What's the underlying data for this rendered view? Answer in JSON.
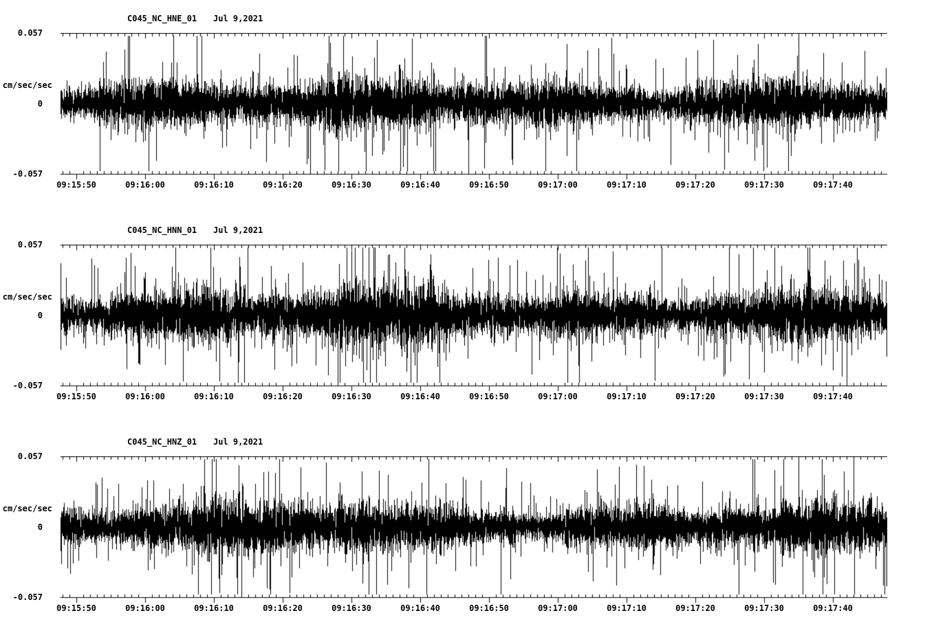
{
  "page": {
    "background": "#ffffff",
    "trace_color": "#000000"
  },
  "chart_data": [
    {
      "type": "line",
      "title": "C045_NC_HNE_01",
      "date_label": "Jul 9,2021",
      "ylabel": "cm/sec/sec",
      "ylim": [
        -0.057,
        0.057
      ],
      "ytick_labels": [
        "0.057",
        "0",
        "-0.057"
      ],
      "xtick_labels": [
        "09:15:50",
        "09:16:00",
        "09:16:10",
        "09:16:20",
        "09:16:30",
        "09:16:40",
        "09:16:50",
        "09:17:00",
        "09:17:10",
        "09:17:20",
        "09:17:30",
        "09:17:40"
      ],
      "xtick_interval_seconds": 10,
      "duration_seconds_approx": 120,
      "series_description": "dense broadband accelerometer noise trace, zero-mean, occasional spikes toward full scale, slightly elevated amplitude near 09:16:40-09:16:50",
      "noise_params": {
        "seed": 1013,
        "base_amp": 0.016,
        "spike_prob": 0.05,
        "bump_amp": 0.35,
        "bump_center": 0.47,
        "bump_width": 0.12
      }
    },
    {
      "type": "line",
      "title": "C045_NC_HNN_01",
      "date_label": "Jul 9,2021",
      "ylabel": "cm/sec/sec",
      "ylim": [
        -0.057,
        0.057
      ],
      "ytick_labels": [
        "0.057",
        "0",
        "-0.057"
      ],
      "xtick_labels": [
        "09:15:50",
        "09:16:00",
        "09:16:10",
        "09:16:20",
        "09:16:30",
        "09:16:40",
        "09:16:50",
        "09:17:00",
        "09:17:10",
        "09:17:20",
        "09:17:30",
        "09:17:40"
      ],
      "xtick_interval_seconds": 10,
      "duration_seconds_approx": 120,
      "series_description": "dense broadband accelerometer noise trace, zero-mean, larger downward spikes near 09:16:30-09:16:45",
      "noise_params": {
        "seed": 2027,
        "base_amp": 0.017,
        "spike_prob": 0.06,
        "bump_amp": 0.4,
        "bump_center": 0.42,
        "bump_width": 0.15
      }
    },
    {
      "type": "line",
      "title": "C045_NC_HNZ_01",
      "date_label": "Jul 9,2021",
      "ylabel": "cm/sec/sec",
      "ylim": [
        -0.057,
        0.057
      ],
      "ytick_labels": [
        "0.057",
        "0",
        "-0.057"
      ],
      "xtick_labels": [
        "09:15:50",
        "09:16:00",
        "09:16:10",
        "09:16:20",
        "09:16:30",
        "09:16:40",
        "09:16:50",
        "09:17:00",
        "09:17:10",
        "09:17:20",
        "09:17:30",
        "09:17:40"
      ],
      "xtick_interval_seconds": 10,
      "duration_seconds_approx": 120,
      "series_description": "dense broadband accelerometer noise trace, zero-mean, fairly uniform amplitude across the window",
      "noise_params": {
        "seed": 3041,
        "base_amp": 0.017,
        "spike_prob": 0.05,
        "bump_amp": 0.2,
        "bump_center": 0.3,
        "bump_width": 0.1
      }
    }
  ]
}
